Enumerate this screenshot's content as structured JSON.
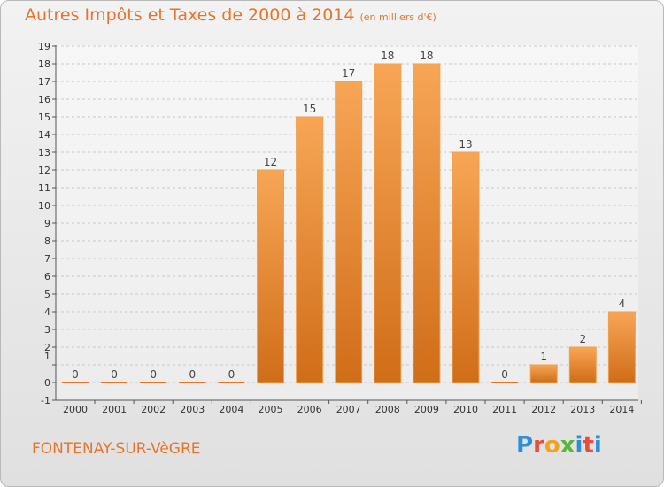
{
  "title": "Autres Impôts et Taxes de 2000 à 2014",
  "unit": "(en milliers d'€)",
  "commune": "FONTENAY-SUR-VèGRE",
  "brand": [
    "P",
    "r",
    "o",
    "x",
    "i",
    "t",
    "i"
  ],
  "colors": {
    "accent": "#e8742a",
    "bar_light": "#f7a656",
    "bar_dark": "#d06d18",
    "grid": "#c8c8c8"
  },
  "chart_data": {
    "type": "bar",
    "title": "Autres Impôts et Taxes de 2000 à 2014",
    "categories": [
      "2000",
      "2001",
      "2002",
      "2003",
      "2004",
      "2005",
      "2006",
      "2007",
      "2008",
      "2009",
      "2010",
      "2011",
      "2012",
      "2013",
      "2014"
    ],
    "values": [
      0,
      0,
      0,
      0,
      0,
      12,
      15,
      17,
      18,
      18,
      13,
      0,
      1,
      2,
      4
    ],
    "ylim": [
      -1,
      19
    ],
    "yticks": [
      "-1",
      "0",
      "",
      "1",
      "2",
      "3",
      "4",
      "5",
      "6",
      "7",
      "8",
      "9",
      "10",
      "11",
      "12",
      "13",
      "14",
      "15",
      "16",
      "17",
      "18",
      "19"
    ],
    "grid": true
  }
}
